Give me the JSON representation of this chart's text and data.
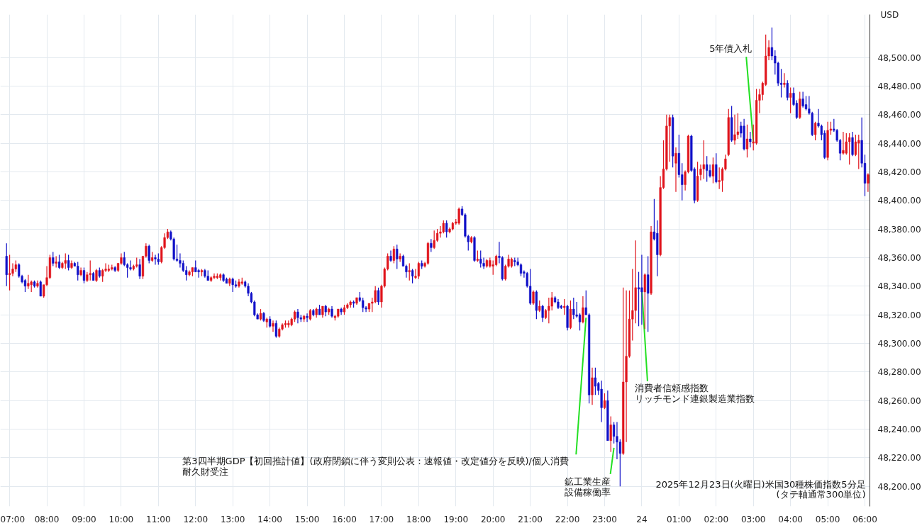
{
  "chart_data": {
    "type": "candlestick",
    "title": "2025年12月23日(火曜日)米国30種株価指数5分足",
    "subtitle": "(タテ軸通常300単位)",
    "annotations": [
      "USD",
      {
        "text": "第3四半期GDP【初回推計値】(政府閉鎖に伴う変則公表：速報値・改定値分を反映)/個人消費",
        "x": "2025-12-23T22:30",
        "y": 48318
      },
      "耐久財受注",
      {
        "text": "鉱工業生産",
        "x": "2025-12-23T23:15",
        "y": 48227
      },
      "設備稼働率",
      {
        "text": "消費者信頼感指数",
        "x": "2025-12-24T00:00",
        "y": 48338
      },
      "リッチモンド連銀製造業指数",
      {
        "text": "5年債入札",
        "x": "2025-12-24T03:00",
        "y": 48441
      }
    ],
    "x": [
      "2025-12-23T06:55",
      "2025-12-23T07:00",
      "2025-12-23T07:05",
      "2025-12-23T07:10",
      "2025-12-23T07:15",
      "2025-12-23T07:20",
      "2025-12-23T07:25",
      "2025-12-23T07:30",
      "2025-12-23T07:35",
      "2025-12-23T07:40",
      "2025-12-23T07:45",
      "2025-12-23T07:50",
      "2025-12-23T07:55",
      "2025-12-23T08:00",
      "2025-12-23T08:05",
      "2025-12-23T08:10",
      "2025-12-23T08:15",
      "2025-12-23T08:20",
      "2025-12-23T08:25",
      "2025-12-23T08:30",
      "2025-12-23T08:35",
      "2025-12-23T08:40",
      "2025-12-23T08:45",
      "2025-12-23T08:50",
      "2025-12-23T08:55",
      "2025-12-23T09:00",
      "2025-12-23T09:05",
      "2025-12-23T09:10",
      "2025-12-23T09:15",
      "2025-12-23T09:20",
      "2025-12-23T09:25",
      "2025-12-23T09:30",
      "2025-12-23T09:35",
      "2025-12-23T09:40",
      "2025-12-23T09:45",
      "2025-12-23T09:50",
      "2025-12-23T09:55",
      "2025-12-23T10:00",
      "2025-12-23T10:05",
      "2025-12-23T10:10",
      "2025-12-23T10:15",
      "2025-12-23T10:20",
      "2025-12-23T10:25",
      "2025-12-23T10:30",
      "2025-12-23T10:35",
      "2025-12-23T10:40",
      "2025-12-23T10:45",
      "2025-12-23T10:50",
      "2025-12-23T10:55",
      "2025-12-23T11:00",
      "2025-12-23T11:05",
      "2025-12-23T11:10",
      "2025-12-23T11:15",
      "2025-12-23T11:20",
      "2025-12-23T11:25",
      "2025-12-23T11:30",
      "2025-12-23T11:35",
      "2025-12-23T11:40",
      "2025-12-23T11:45",
      "2025-12-23T11:50",
      "2025-12-23T11:55",
      "2025-12-23T12:00",
      "2025-12-23T12:05",
      "2025-12-23T12:10",
      "2025-12-23T12:15",
      "2025-12-23T12:20",
      "2025-12-23T12:25",
      "2025-12-23T12:30",
      "2025-12-23T12:35",
      "2025-12-23T12:40",
      "2025-12-23T12:45",
      "2025-12-23T12:50",
      "2025-12-23T12:55",
      "2025-12-23T13:00",
      "2025-12-23T13:05",
      "2025-12-23T13:10",
      "2025-12-23T13:15",
      "2025-12-23T13:20",
      "2025-12-23T13:25",
      "2025-12-23T13:30",
      "2025-12-23T13:35",
      "2025-12-23T13:40",
      "2025-12-23T13:45",
      "2025-12-23T13:50",
      "2025-12-23T13:55",
      "2025-12-23T14:00",
      "2025-12-23T14:05",
      "2025-12-23T14:10",
      "2025-12-23T14:15",
      "2025-12-23T14:20",
      "2025-12-23T14:25",
      "2025-12-23T14:30",
      "2025-12-23T14:35",
      "2025-12-23T14:40",
      "2025-12-23T14:45",
      "2025-12-23T14:50",
      "2025-12-23T14:55",
      "2025-12-23T15:00",
      "2025-12-23T15:05",
      "2025-12-23T15:10",
      "2025-12-23T15:15",
      "2025-12-23T15:20",
      "2025-12-23T15:25",
      "2025-12-23T15:30",
      "2025-12-23T15:35",
      "2025-12-23T15:40",
      "2025-12-23T15:45",
      "2025-12-23T15:50",
      "2025-12-23T15:55",
      "2025-12-23T16:00",
      "2025-12-23T16:05",
      "2025-12-23T16:10",
      "2025-12-23T16:15",
      "2025-12-23T16:20",
      "2025-12-23T16:25",
      "2025-12-23T16:30",
      "2025-12-23T16:35",
      "2025-12-23T16:40",
      "2025-12-23T16:45",
      "2025-12-23T16:50",
      "2025-12-23T16:55",
      "2025-12-23T17:00",
      "2025-12-23T17:05",
      "2025-12-23T17:10",
      "2025-12-23T17:15",
      "2025-12-23T17:20",
      "2025-12-23T17:25",
      "2025-12-23T17:30",
      "2025-12-23T17:35",
      "2025-12-23T17:40",
      "2025-12-23T17:45",
      "2025-12-23T17:50",
      "2025-12-23T17:55",
      "2025-12-23T18:00",
      "2025-12-23T18:05",
      "2025-12-23T18:10",
      "2025-12-23T18:15",
      "2025-12-23T18:20",
      "2025-12-23T18:25",
      "2025-12-23T18:30",
      "2025-12-23T18:35",
      "2025-12-23T18:40",
      "2025-12-23T18:45",
      "2025-12-23T18:50",
      "2025-12-23T18:55",
      "2025-12-23T19:00",
      "2025-12-23T19:05",
      "2025-12-23T19:10",
      "2025-12-23T19:15",
      "2025-12-23T19:20",
      "2025-12-23T19:25",
      "2025-12-23T19:30",
      "2025-12-23T19:35",
      "2025-12-23T19:40",
      "2025-12-23T19:45",
      "2025-12-23T19:50",
      "2025-12-23T19:55",
      "2025-12-23T20:00",
      "2025-12-23T20:05",
      "2025-12-23T20:10",
      "2025-12-23T20:15",
      "2025-12-23T20:20",
      "2025-12-23T20:25",
      "2025-12-23T20:30",
      "2025-12-23T20:35",
      "2025-12-23T20:40",
      "2025-12-23T20:45",
      "2025-12-23T20:50",
      "2025-12-23T20:55",
      "2025-12-23T21:00",
      "2025-12-23T21:05",
      "2025-12-23T21:10",
      "2025-12-23T21:15",
      "2025-12-23T21:20",
      "2025-12-23T21:25",
      "2025-12-23T21:30",
      "2025-12-23T21:35",
      "2025-12-23T21:40",
      "2025-12-23T21:45",
      "2025-12-23T21:50",
      "2025-12-23T21:55",
      "2025-12-23T22:00",
      "2025-12-23T22:05",
      "2025-12-23T22:10",
      "2025-12-23T22:15",
      "2025-12-23T22:20",
      "2025-12-23T22:25",
      "2025-12-23T22:30",
      "2025-12-23T22:35",
      "2025-12-23T22:40",
      "2025-12-23T22:45",
      "2025-12-23T22:50",
      "2025-12-23T22:55",
      "2025-12-23T23:00",
      "2025-12-23T23:05",
      "2025-12-23T23:10",
      "2025-12-23T23:15",
      "2025-12-23T23:20",
      "2025-12-23T23:25",
      "2025-12-23T23:30",
      "2025-12-23T23:35",
      "2025-12-23T23:40",
      "2025-12-23T23:45",
      "2025-12-23T23:50",
      "2025-12-23T23:55",
      "2025-12-24T00:00",
      "2025-12-24T00:05",
      "2025-12-24T00:10",
      "2025-12-24T00:15",
      "2025-12-24T00:20",
      "2025-12-24T00:25",
      "2025-12-24T00:30",
      "2025-12-24T00:35",
      "2025-12-24T00:40",
      "2025-12-24T00:45",
      "2025-12-24T00:50",
      "2025-12-24T00:55",
      "2025-12-24T01:00",
      "2025-12-24T01:05",
      "2025-12-24T01:10",
      "2025-12-24T01:15",
      "2025-12-24T01:20",
      "2025-12-24T01:25",
      "2025-12-24T01:30",
      "2025-12-24T01:35",
      "2025-12-24T01:40",
      "2025-12-24T01:45",
      "2025-12-24T01:50",
      "2025-12-24T01:55",
      "2025-12-24T02:00",
      "2025-12-24T02:05",
      "2025-12-24T02:10",
      "2025-12-24T02:15",
      "2025-12-24T02:20",
      "2025-12-24T02:25",
      "2025-12-24T02:30",
      "2025-12-24T02:35",
      "2025-12-24T02:40",
      "2025-12-24T02:45",
      "2025-12-24T02:50",
      "2025-12-24T02:55",
      "2025-12-24T03:00",
      "2025-12-24T03:05",
      "2025-12-24T03:10",
      "2025-12-24T03:15",
      "2025-12-24T03:20",
      "2025-12-24T03:25",
      "2025-12-24T03:30",
      "2025-12-24T03:35",
      "2025-12-24T03:40",
      "2025-12-24T03:45",
      "2025-12-24T03:50",
      "2025-12-24T03:55",
      "2025-12-24T04:00",
      "2025-12-24T04:05",
      "2025-12-24T04:10",
      "2025-12-24T04:15",
      "2025-12-24T04:20",
      "2025-12-24T04:25",
      "2025-12-24T04:30",
      "2025-12-24T04:35",
      "2025-12-24T04:40",
      "2025-12-24T04:45",
      "2025-12-24T04:50",
      "2025-12-24T04:55",
      "2025-12-24T05:00",
      "2025-12-24T05:05",
      "2025-12-24T05:10",
      "2025-12-24T05:15",
      "2025-12-24T05:20",
      "2025-12-24T05:25",
      "2025-12-24T05:30",
      "2025-12-24T05:35",
      "2025-12-24T05:40",
      "2025-12-24T05:45",
      "2025-12-24T05:50",
      "2025-12-24T05:55",
      "2025-12-24T06:00",
      "2025-12-24T06:05"
    ],
    "ohlc": [
      [
        48361,
        48370,
        48340,
        48348
      ],
      [
        48348,
        48362,
        48337,
        48349
      ],
      [
        48349,
        48356,
        48347,
        48352
      ],
      [
        48352,
        48358,
        48350,
        48355
      ],
      [
        48355,
        48356,
        48346,
        48347
      ],
      [
        48347,
        48348,
        48342,
        48343
      ],
      [
        48344,
        48345,
        48336,
        48340
      ],
      [
        48340,
        48348,
        48338,
        48342
      ],
      [
        48341,
        48344,
        48336,
        48343
      ],
      [
        48343,
        48344,
        48339,
        48340
      ],
      [
        48340,
        48344,
        48339,
        48342
      ],
      [
        48343,
        48344,
        48333,
        48333
      ],
      [
        48333,
        48341,
        48332,
        48341
      ],
      [
        48341,
        48354,
        48340,
        48346
      ],
      [
        48346,
        48362,
        48345,
        48360
      ],
      [
        48360,
        48364,
        48354,
        48356
      ],
      [
        48356,
        48361,
        48353,
        48357
      ],
      [
        48357,
        48362,
        48352,
        48353
      ],
      [
        48353,
        48357,
        48352,
        48356
      ],
      [
        48356,
        48363,
        48352,
        48358
      ],
      [
        48358,
        48362,
        48351,
        48353
      ],
      [
        48353,
        48358,
        48352,
        48356
      ],
      [
        48356,
        48357,
        48354,
        48354
      ],
      [
        48354,
        48357,
        48344,
        48348
      ],
      [
        48348,
        48353,
        48347,
        48351
      ],
      [
        48351,
        48353,
        48342,
        48344
      ],
      [
        48344,
        48350,
        48343,
        48348
      ],
      [
        48348,
        48358,
        48344,
        48349
      ],
      [
        48349,
        48350,
        48344,
        48344
      ],
      [
        48344,
        48352,
        48343,
        48351
      ],
      [
        48351,
        48353,
        48346,
        48347
      ],
      [
        48347,
        48352,
        48343,
        48351
      ],
      [
        48351,
        48356,
        48350,
        48352
      ],
      [
        48351,
        48355,
        48350,
        48352
      ],
      [
        48352,
        48355,
        48351,
        48353
      ],
      [
        48353,
        48354,
        48350,
        48351
      ],
      [
        48351,
        48356,
        48350,
        48356
      ],
      [
        48356,
        48363,
        48355,
        48360
      ],
      [
        48360,
        48364,
        48354,
        48355
      ],
      [
        48355,
        48356,
        48346,
        48353
      ],
      [
        48353,
        48358,
        48351,
        48352
      ],
      [
        48352,
        48355,
        48351,
        48354
      ],
      [
        48354,
        48360,
        48353,
        48355
      ],
      [
        48355,
        48359,
        48345,
        48347
      ],
      [
        48347,
        48361,
        48345,
        48361
      ],
      [
        48361,
        48370,
        48360,
        48368
      ],
      [
        48368,
        48369,
        48356,
        48358
      ],
      [
        48358,
        48364,
        48357,
        48360
      ],
      [
        48360,
        48362,
        48355,
        48359
      ],
      [
        48359,
        48363,
        48355,
        48357
      ],
      [
        48357,
        48368,
        48356,
        48367
      ],
      [
        48367,
        48377,
        48366,
        48374
      ],
      [
        48374,
        48380,
        48373,
        48378
      ],
      [
        48378,
        48379,
        48372,
        48373
      ],
      [
        48373,
        48374,
        48358,
        48359
      ],
      [
        48359,
        48369,
        48357,
        48358
      ],
      [
        48358,
        48363,
        48353,
        48356
      ],
      [
        48356,
        48358,
        48350,
        48351
      ],
      [
        48351,
        48354,
        48344,
        48348
      ],
      [
        48348,
        48351,
        48347,
        48350
      ],
      [
        48350,
        48353,
        48347,
        48353
      ],
      [
        48353,
        48358,
        48350,
        48350
      ],
      [
        48351,
        48352,
        48346,
        48350
      ],
      [
        48350,
        48352,
        48347,
        48351
      ],
      [
        48351,
        48352,
        48346,
        48347
      ],
      [
        48347,
        48351,
        48344,
        48344
      ],
      [
        48344,
        48347,
        48343,
        48346
      ],
      [
        48346,
        48349,
        48345,
        48347
      ],
      [
        48346,
        48349,
        48345,
        48347
      ],
      [
        48346,
        48349,
        48344,
        48348
      ],
      [
        48348,
        48349,
        48343,
        48344
      ],
      [
        48345,
        48346,
        48342,
        48342
      ],
      [
        48342,
        48346,
        48340,
        48345
      ],
      [
        48345,
        48346,
        48336,
        48341
      ],
      [
        48341,
        48344,
        48339,
        48340
      ],
      [
        48340,
        48345,
        48339,
        48343
      ],
      [
        48342,
        48346,
        48341,
        48343
      ],
      [
        48343,
        48344,
        48339,
        48340
      ],
      [
        48340,
        48342,
        48333,
        48335
      ],
      [
        48335,
        48336,
        48328,
        48329
      ],
      [
        48329,
        48330,
        48319,
        48320
      ],
      [
        48320,
        48321,
        48317,
        48317
      ],
      [
        48317,
        48324,
        48316,
        48321
      ],
      [
        48321,
        48322,
        48315,
        48316
      ],
      [
        48315,
        48318,
        48311,
        48317
      ],
      [
        48317,
        48319,
        48311,
        48312
      ],
      [
        48312,
        48316,
        48308,
        48314
      ],
      [
        48314,
        48316,
        48304,
        48305
      ],
      [
        48305,
        48311,
        48304,
        48310
      ],
      [
        48310,
        48314,
        48309,
        48313
      ],
      [
        48313,
        48316,
        48311,
        48314
      ],
      [
        48313,
        48316,
        48311,
        48314
      ],
      [
        48313,
        48318,
        48312,
        48317
      ],
      [
        48317,
        48323,
        48315,
        48322
      ],
      [
        48322,
        48324,
        48314,
        48318
      ],
      [
        48318,
        48320,
        48315,
        48317
      ],
      [
        48317,
        48320,
        48315,
        48319
      ],
      [
        48319,
        48321,
        48315,
        48318
      ],
      [
        48317,
        48324,
        48316,
        48323
      ],
      [
        48323,
        48324,
        48319,
        48320
      ],
      [
        48320,
        48325,
        48318,
        48324
      ],
      [
        48324,
        48327,
        48320,
        48320
      ],
      [
        48320,
        48326,
        48318,
        48326
      ],
      [
        48326,
        48327,
        48319,
        48322
      ],
      [
        48322,
        48325,
        48320,
        48324
      ],
      [
        48324,
        48326,
        48318,
        48319
      ],
      [
        48318,
        48320,
        48316,
        48319
      ],
      [
        48319,
        48324,
        48318,
        48324
      ],
      [
        48324,
        48325,
        48320,
        48322
      ],
      [
        48322,
        48327,
        48320,
        48325
      ],
      [
        48325,
        48328,
        48324,
        48327
      ],
      [
        48327,
        48330,
        48325,
        48329
      ],
      [
        48329,
        48330,
        48325,
        48328
      ],
      [
        48328,
        48332,
        48327,
        48332
      ],
      [
        48332,
        48336,
        48329,
        48330
      ],
      [
        48330,
        48332,
        48322,
        48325
      ],
      [
        48325,
        48326,
        48322,
        48324
      ],
      [
        48324,
        48328,
        48322,
        48328
      ],
      [
        48328,
        48332,
        48322,
        48329
      ],
      [
        48329,
        48340,
        48328,
        48337
      ],
      [
        48337,
        48339,
        48327,
        48329
      ],
      [
        48329,
        48341,
        48325,
        48340
      ],
      [
        48340,
        48353,
        48339,
        48352
      ],
      [
        48352,
        48363,
        48351,
        48361
      ],
      [
        48361,
        48365,
        48357,
        48358
      ],
      [
        48358,
        48368,
        48356,
        48366
      ],
      [
        48366,
        48369,
        48352,
        48359
      ],
      [
        48359,
        48363,
        48357,
        48361
      ],
      [
        48361,
        48362,
        48354,
        48354
      ],
      [
        48354,
        48355,
        48346,
        48350
      ],
      [
        48350,
        48356,
        48344,
        48351
      ],
      [
        48351,
        48352,
        48342,
        48347
      ],
      [
        48346,
        48352,
        48345,
        48347
      ],
      [
        48347,
        48357,
        48345,
        48356
      ],
      [
        48356,
        48358,
        48352,
        48354
      ],
      [
        48354,
        48357,
        48353,
        48356
      ],
      [
        48356,
        48371,
        48355,
        48370
      ],
      [
        48370,
        48373,
        48364,
        48367
      ],
      [
        48367,
        48379,
        48366,
        48372
      ],
      [
        48372,
        48380,
        48371,
        48377
      ],
      [
        48377,
        48382,
        48374,
        48378
      ],
      [
        48378,
        48386,
        48377,
        48384
      ],
      [
        48384,
        48386,
        48374,
        48378
      ],
      [
        48378,
        48381,
        48377,
        48380
      ],
      [
        48380,
        48385,
        48379,
        48384
      ],
      [
        48384,
        48387,
        48383,
        48385
      ],
      [
        48384,
        48395,
        48383,
        48394
      ],
      [
        48394,
        48396,
        48389,
        48390
      ],
      [
        48390,
        48391,
        48374,
        48375
      ],
      [
        48375,
        48376,
        48365,
        48371
      ],
      [
        48371,
        48375,
        48370,
        48374
      ],
      [
        48374,
        48375,
        48357,
        48358
      ],
      [
        48358,
        48365,
        48357,
        48359
      ],
      [
        48359,
        48365,
        48353,
        48356
      ],
      [
        48356,
        48360,
        48352,
        48354
      ],
      [
        48354,
        48359,
        48353,
        48358
      ],
      [
        48354,
        48360,
        48353,
        48358
      ],
      [
        48354,
        48358,
        48348,
        48355
      ],
      [
        48355,
        48362,
        48354,
        48361
      ],
      [
        48361,
        48371,
        48356,
        48360
      ],
      [
        48360,
        48361,
        48344,
        48345
      ],
      [
        48345,
        48355,
        48344,
        48354
      ],
      [
        48354,
        48362,
        48353,
        48359
      ],
      [
        48354,
        48360,
        48353,
        48359
      ],
      [
        48358,
        48360,
        48354,
        48357
      ],
      [
        48357,
        48360,
        48354,
        48355
      ],
      [
        48355,
        48356,
        48347,
        48349
      ],
      [
        48350,
        48351,
        48346,
        48349
      ],
      [
        48349,
        48350,
        48339,
        48340
      ],
      [
        48340,
        48352,
        48327,
        48328
      ],
      [
        48328,
        48337,
        48327,
        48336
      ],
      [
        48336,
        48337,
        48317,
        48323
      ],
      [
        48323,
        48330,
        48322,
        48326
      ],
      [
        48326,
        48327,
        48315,
        48318
      ],
      [
        48318,
        48324,
        48317,
        48323
      ],
      [
        48323,
        48332,
        48314,
        48326
      ],
      [
        48326,
        48336,
        48323,
        48332
      ],
      [
        48332,
        48333,
        48328,
        48329
      ],
      [
        48329,
        48331,
        48324,
        48325
      ],
      [
        48326,
        48327,
        48324,
        48325
      ],
      [
        48325,
        48331,
        48320,
        48326
      ],
      [
        48326,
        48327,
        48309,
        48311
      ],
      [
        48311,
        48330,
        48310,
        48324
      ],
      [
        48324,
        48332,
        48317,
        48320
      ],
      [
        48320,
        48329,
        48318,
        48319
      ],
      [
        48320,
        48321,
        48309,
        48315
      ],
      [
        48315,
        48333,
        48314,
        48325
      ],
      [
        48325,
        48337,
        48320,
        48320
      ],
      [
        48320,
        48321,
        48258,
        48264
      ],
      [
        48264,
        48283,
        48257,
        48276
      ],
      [
        48276,
        48283,
        48264,
        48270
      ],
      [
        48272,
        48273,
        48264,
        48267
      ],
      [
        48268,
        48274,
        48245,
        48255
      ],
      [
        48255,
        48265,
        48254,
        48260
      ],
      [
        48260,
        48267,
        48232,
        48232
      ],
      [
        48232,
        48249,
        48224,
        48243
      ],
      [
        48243,
        48245,
        48230,
        48235
      ],
      [
        48235,
        48245,
        48219,
        48231
      ],
      [
        48231,
        48233,
        48200,
        48223
      ],
      [
        48223,
        48339,
        48222,
        48273
      ],
      [
        48273,
        48337,
        48231,
        48291
      ],
      [
        48291,
        48337,
        48290,
        48317
      ],
      [
        48317,
        48352,
        48302,
        48323
      ],
      [
        48323,
        48372,
        48314,
        48339
      ],
      [
        48339,
        48350,
        48312,
        48338
      ],
      [
        48339,
        48362,
        48313,
        48336
      ],
      [
        48336,
        48349,
        48310,
        48348
      ],
      [
        48348,
        48361,
        48308,
        48335
      ],
      [
        48335,
        48382,
        48334,
        48378
      ],
      [
        48378,
        48401,
        48372,
        48373
      ],
      [
        48377,
        48386,
        48347,
        48362
      ],
      [
        48362,
        48417,
        48361,
        48409
      ],
      [
        48409,
        48442,
        48408,
        48422
      ],
      [
        48422,
        48460,
        48421,
        48452
      ],
      [
        48452,
        48460,
        48427,
        48458
      ],
      [
        48458,
        48460,
        48423,
        48431
      ],
      [
        48426,
        48437,
        48406,
        48433
      ],
      [
        48433,
        48446,
        48416,
        48418
      ],
      [
        48418,
        48426,
        48400,
        48411
      ],
      [
        48411,
        48421,
        48407,
        48420
      ],
      [
        48420,
        48446,
        48419,
        48445
      ],
      [
        48445,
        48446,
        48420,
        48421
      ],
      [
        48422,
        48423,
        48398,
        48400
      ],
      [
        48400,
        48427,
        48399,
        48417
      ],
      [
        48418,
        48425,
        48414,
        48422
      ],
      [
        48422,
        48442,
        48415,
        48425
      ],
      [
        48425,
        48431,
        48413,
        48421
      ],
      [
        48421,
        48425,
        48416,
        48417
      ],
      [
        48417,
        48430,
        48412,
        48425
      ],
      [
        48425,
        48433,
        48412,
        48413
      ],
      [
        48413,
        48423,
        48408,
        48414
      ],
      [
        48414,
        48423,
        48406,
        48422
      ],
      [
        48422,
        48432,
        48421,
        48429
      ],
      [
        48432,
        48464,
        48431,
        48458
      ],
      [
        48458,
        48466,
        48441,
        48442
      ],
      [
        48442,
        48460,
        48439,
        48446
      ],
      [
        48446,
        48461,
        48443,
        48448
      ],
      [
        48452,
        48455,
        48444,
        48447
      ],
      [
        48452,
        48457,
        48435,
        48436
      ],
      [
        48436,
        48453,
        48430,
        48443
      ],
      [
        48443,
        48448,
        48437,
        48441
      ],
      [
        48440,
        48453,
        48435,
        48441
      ],
      [
        48440,
        48478,
        48439,
        48470
      ],
      [
        48470,
        48478,
        48461,
        48474
      ],
      [
        48474,
        48483,
        48470,
        48482
      ],
      [
        48481,
        48516,
        48480,
        48501
      ],
      [
        48501,
        48512,
        48498,
        48507
      ],
      [
        48507,
        48521,
        48498,
        48501
      ],
      [
        48501,
        48505,
        48488,
        48496
      ],
      [
        48496,
        48497,
        48480,
        48482
      ],
      [
        48482,
        48492,
        48472,
        48481
      ],
      [
        48481,
        48489,
        48479,
        48482
      ],
      [
        48482,
        48484,
        48470,
        48472
      ],
      [
        48472,
        48479,
        48461,
        48475
      ],
      [
        48475,
        48479,
        48466,
        48467
      ],
      [
        48468,
        48470,
        48457,
        48458
      ],
      [
        48458,
        48476,
        48457,
        48471
      ],
      [
        48471,
        48476,
        48465,
        48466
      ],
      [
        48467,
        48473,
        48463,
        48464
      ],
      [
        48464,
        48473,
        48460,
        48461
      ],
      [
        48461,
        48462,
        48445,
        48446
      ],
      [
        48446,
        48455,
        48442,
        48454
      ],
      [
        48454,
        48464,
        48451,
        48452
      ],
      [
        48452,
        48453,
        48442,
        48446
      ],
      [
        48447,
        48449,
        48429,
        48430
      ],
      [
        48430,
        48455,
        48428,
        48449
      ],
      [
        48449,
        48455,
        48446,
        48450
      ],
      [
        48450,
        48457,
        48448,
        48449
      ],
      [
        48449,
        48450,
        48441,
        48442
      ],
      [
        48442,
        48443,
        48428,
        48433
      ],
      [
        48433,
        48448,
        48432,
        48435
      ],
      [
        48433,
        48447,
        48432,
        48441
      ],
      [
        48441,
        48447,
        48425,
        48444
      ],
      [
        48444,
        48448,
        48431,
        48432
      ],
      [
        48432,
        48446,
        48431,
        48441
      ],
      [
        48440,
        48446,
        48422,
        48442
      ],
      [
        48442,
        48458,
        48423,
        48426
      ],
      [
        48426,
        48432,
        48403,
        48412
      ],
      [
        48412,
        48419,
        48406,
        48418
      ]
    ],
    "colors": [
      "#1010c8",
      "#e0141c",
      "#e0141c",
      "#e0141c",
      "#1010c8",
      "#1010c8",
      "#1010c8",
      "#e0141c",
      "#e0141c",
      "#1010c8",
      "#e0141c",
      "#1010c8",
      "#e0141c",
      "#e0141c",
      "#e0141c",
      "#1010c8",
      "#e0141c",
      "#1010c8",
      "#e0141c",
      "#e0141c",
      "#1010c8",
      "#e0141c",
      "#1010c8",
      "#1010c8",
      "#e0141c",
      "#1010c8",
      "#e0141c",
      "#e0141c",
      "#1010c8",
      "#e0141c",
      "#1010c8",
      "#e0141c",
      "#e0141c",
      "#e0141c",
      "#e0141c",
      "#1010c8",
      "#e0141c",
      "#e0141c",
      "#1010c8",
      "#1010c8",
      "#1010c8",
      "#e0141c",
      "#e0141c",
      "#1010c8",
      "#e0141c",
      "#e0141c",
      "#1010c8",
      "#e0141c",
      "#1010c8",
      "#1010c8",
      "#e0141c",
      "#e0141c",
      "#e0141c",
      "#1010c8",
      "#1010c8",
      "#1010c8",
      "#1010c8",
      "#1010c8",
      "#1010c8",
      "#e0141c",
      "#e0141c",
      "#1010c8",
      "#1010c8",
      "#e0141c",
      "#1010c8",
      "#1010c8",
      "#e0141c",
      "#e0141c",
      "#e0141c",
      "#e0141c",
      "#1010c8",
      "#1010c8",
      "#e0141c",
      "#1010c8",
      "#1010c8",
      "#e0141c",
      "#e0141c",
      "#1010c8",
      "#1010c8",
      "#1010c8",
      "#1010c8",
      "#1010c8",
      "#e0141c",
      "#1010c8",
      "#e0141c",
      "#1010c8",
      "#e0141c",
      "#1010c8",
      "#e0141c",
      "#e0141c",
      "#e0141c",
      "#e0141c",
      "#e0141c",
      "#e0141c",
      "#1010c8",
      "#1010c8",
      "#e0141c",
      "#1010c8",
      "#e0141c",
      "#1010c8",
      "#e0141c",
      "#1010c8",
      "#e0141c",
      "#1010c8",
      "#e0141c",
      "#1010c8",
      "#e0141c",
      "#e0141c",
      "#1010c8",
      "#e0141c",
      "#e0141c",
      "#e0141c",
      "#1010c8",
      "#e0141c",
      "#1010c8",
      "#1010c8",
      "#1010c8",
      "#e0141c",
      "#e0141c",
      "#e0141c",
      "#1010c8",
      "#e0141c",
      "#e0141c",
      "#e0141c",
      "#1010c8",
      "#e0141c",
      "#1010c8",
      "#e0141c",
      "#1010c8",
      "#1010c8",
      "#e0141c",
      "#1010c8",
      "#e0141c",
      "#e0141c",
      "#1010c8",
      "#e0141c",
      "#e0141c",
      "#1010c8",
      "#e0141c",
      "#e0141c",
      "#e0141c",
      "#e0141c",
      "#1010c8",
      "#e0141c",
      "#e0141c",
      "#e0141c",
      "#e0141c",
      "#1010c8",
      "#1010c8",
      "#1010c8",
      "#e0141c",
      "#1010c8",
      "#e0141c",
      "#1010c8",
      "#1010c8",
      "#e0141c",
      "#e0141c",
      "#e0141c",
      "#e0141c",
      "#1010c8",
      "#1010c8",
      "#e0141c",
      "#e0141c",
      "#e0141c",
      "#1010c8",
      "#1010c8",
      "#1010c8",
      "#1010c8",
      "#1010c8",
      "#1010c8",
      "#e0141c",
      "#1010c8",
      "#e0141c",
      "#1010c8",
      "#e0141c",
      "#e0141c",
      "#e0141c",
      "#1010c8",
      "#1010c8",
      "#1010c8",
      "#e0141c",
      "#1010c8",
      "#e0141c",
      "#1010c8",
      "#1010c8",
      "#1010c8",
      "#e0141c",
      "#1010c8",
      "#1010c8",
      "#e0141c",
      "#1010c8",
      "#1010c8",
      "#1010c8",
      "#e0141c",
      "#1010c8",
      "#e0141c",
      "#1010c8",
      "#1010c8",
      "#1010c8",
      "#e0141c",
      "#e0141c",
      "#e0141c",
      "#e0141c",
      "#e0141c",
      "#1010c8",
      "#1010c8",
      "#e0141c",
      "#1010c8",
      "#e0141c",
      "#1010c8",
      "#1010c8",
      "#e0141c",
      "#e0141c",
      "#e0141c",
      "#e0141c",
      "#1010c8",
      "#e0141c",
      "#1010c8",
      "#1010c8",
      "#e0141c",
      "#e0141c",
      "#1010c8",
      "#1010c8",
      "#e0141c",
      "#e0141c",
      "#e0141c",
      "#1010c8",
      "#1010c8",
      "#e0141c",
      "#1010c8",
      "#e0141c",
      "#e0141c",
      "#e0141c",
      "#e0141c",
      "#1010c8",
      "#e0141c",
      "#e0141c",
      "#1010c8",
      "#1010c8",
      "#e0141c",
      "#1010c8",
      "#e0141c",
      "#e0141c",
      "#e0141c",
      "#e0141c",
      "#e0141c",
      "#e0141c",
      "#1010c8",
      "#1010c8",
      "#1010c8",
      "#1010c8",
      "#e0141c",
      "#1010c8",
      "#e0141c",
      "#1010c8",
      "#1010c8",
      "#e0141c",
      "#1010c8",
      "#1010c8",
      "#1010c8",
      "#1010c8",
      "#e0141c",
      "#1010c8",
      "#1010c8",
      "#1010c8",
      "#e0141c",
      "#e0141c",
      "#1010c8",
      "#1010c8",
      "#1010c8",
      "#e0141c",
      "#e0141c",
      "#e0141c",
      "#1010c8",
      "#e0141c",
      "#e0141c",
      "#1010c8",
      "#1010c8",
      "#e0141c"
    ],
    "xlim": [
      "2025-12-23T06:45",
      "2025-12-24T06:08"
    ],
    "xticks": [
      {
        "value": "2025-12-23T07:00",
        "label": "07:00"
      },
      {
        "value": "2025-12-23T08:00",
        "label": "08:00"
      },
      {
        "value": "2025-12-23T09:00",
        "label": "09:00"
      },
      {
        "value": "2025-12-23T10:00",
        "label": "10:00"
      },
      {
        "value": "2025-12-23T11:00",
        "label": "11:00"
      },
      {
        "value": "2025-12-23T12:00",
        "label": "12:00"
      },
      {
        "value": "2025-12-23T13:00",
        "label": "13:00"
      },
      {
        "value": "2025-12-23T14:00",
        "label": "14:00"
      },
      {
        "value": "2025-12-23T15:00",
        "label": "15:00"
      },
      {
        "value": "2025-12-23T16:00",
        "label": "16:00"
      },
      {
        "value": "2025-12-23T17:00",
        "label": "17:00"
      },
      {
        "value": "2025-12-23T18:00",
        "label": "18:00"
      },
      {
        "value": "2025-12-23T19:00",
        "label": "19:00"
      },
      {
        "value": "2025-12-23T20:00",
        "label": "20:00"
      },
      {
        "value": "2025-12-23T21:00",
        "label": "21:00"
      },
      {
        "value": "2025-12-23T22:00",
        "label": "22:00"
      },
      {
        "value": "2025-12-23T23:00",
        "label": "23:00"
      },
      {
        "value": "2025-12-24T00:00",
        "label": "24"
      },
      {
        "value": "2025-12-24T01:00",
        "label": "01:00"
      },
      {
        "value": "2025-12-24T02:00",
        "label": "02:00"
      },
      {
        "value": "2025-12-24T03:00",
        "label": "03:00"
      },
      {
        "value": "2025-12-24T04:00",
        "label": "04:00"
      },
      {
        "value": "2025-12-24T05:00",
        "label": "05:00"
      },
      {
        "value": "2025-12-24T06:00",
        "label": "06:00"
      }
    ],
    "ylim": [
      48186,
      48530
    ],
    "yticks": [
      {
        "value": 48200,
        "label": "48,200.00"
      },
      {
        "value": 48220,
        "label": "48,220.00"
      },
      {
        "value": 48240,
        "label": "48,240.00"
      },
      {
        "value": 48260,
        "label": "48,260.00"
      },
      {
        "value": 48280,
        "label": "48,280.00"
      },
      {
        "value": 48300,
        "label": "48,300.00"
      },
      {
        "value": 48320,
        "label": "48,320.00"
      },
      {
        "value": 48340,
        "label": "48,340.00"
      },
      {
        "value": 48360,
        "label": "48,360.00"
      },
      {
        "value": 48380,
        "label": "48,380.00"
      },
      {
        "value": 48400,
        "label": "48,400.00"
      },
      {
        "value": 48420,
        "label": "48,420.00"
      },
      {
        "value": 48440,
        "label": "48,440.00"
      },
      {
        "value": 48460,
        "label": "48,460.00"
      },
      {
        "value": 48480,
        "label": "48,480.00"
      },
      {
        "value": 48500,
        "label": "48,500.00"
      }
    ],
    "grid": true
  }
}
